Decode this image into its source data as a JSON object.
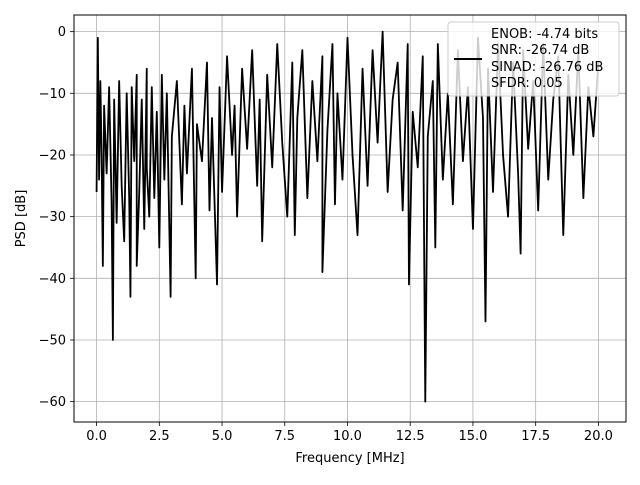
{
  "chart_data": {
    "type": "line",
    "title": "",
    "xlabel": "Frequency [MHz]",
    "ylabel": "PSD [dB]",
    "xlim": [
      -0.9,
      21.1
    ],
    "ylim": [
      -63.3,
      2.7
    ],
    "xticks": [
      0.0,
      2.5,
      5.0,
      7.5,
      10.0,
      12.5,
      15.0,
      17.5,
      20.0
    ],
    "xtick_labels": [
      "0.0",
      "2.5",
      "5.0",
      "7.5",
      "10.0",
      "12.5",
      "15.0",
      "17.5",
      "20.0"
    ],
    "yticks": [
      0,
      -10,
      -20,
      -30,
      -40,
      -50,
      -60
    ],
    "ytick_labels": [
      "0",
      "−10",
      "−20",
      "−30",
      "−40",
      "−50",
      "−60"
    ],
    "grid": true,
    "legend_position": "upper right",
    "legend": {
      "lines": [
        "ENOB: -4.74 bits",
        "SNR: -26.74 dB",
        "SINAD: -26.76 dB",
        "SFDR: 0.05"
      ]
    },
    "series": [
      {
        "color": "#000000",
        "x": [
          0.0,
          0.05,
          0.1,
          0.15,
          0.2,
          0.25,
          0.3,
          0.4,
          0.5,
          0.6,
          0.65,
          0.7,
          0.8,
          0.9,
          1.0,
          1.1,
          1.2,
          1.3,
          1.35,
          1.4,
          1.5,
          1.6,
          1.6,
          1.7,
          1.8,
          1.9,
          2.0,
          2.0,
          2.1,
          2.2,
          2.3,
          2.4,
          2.5,
          2.6,
          2.7,
          2.8,
          2.95,
          3.0,
          3.2,
          3.4,
          3.5,
          3.6,
          3.8,
          3.95,
          4.0,
          4.2,
          4.4,
          4.5,
          4.6,
          4.8,
          4.9,
          5.0,
          5.2,
          5.4,
          5.5,
          5.6,
          5.8,
          6.0,
          6.2,
          6.4,
          6.5,
          6.6,
          6.8,
          7.0,
          7.2,
          7.4,
          7.6,
          7.8,
          7.9,
          8.0,
          8.2,
          8.4,
          8.6,
          8.8,
          9.0,
          9.0,
          9.2,
          9.4,
          9.5,
          9.6,
          9.8,
          10.0,
          10.2,
          10.4,
          10.6,
          10.8,
          11.0,
          11.2,
          11.4,
          11.6,
          11.8,
          12.0,
          12.2,
          12.4,
          12.45,
          12.6,
          12.8,
          13.0,
          13.1,
          13.2,
          13.4,
          13.5,
          13.6,
          13.8,
          14.0,
          14.2,
          14.4,
          14.6,
          14.8,
          15.0,
          15.2,
          15.4,
          15.5,
          15.6,
          15.8,
          16.0,
          16.2,
          16.4,
          16.6,
          16.8,
          16.9,
          17.0,
          17.2,
          17.4,
          17.6,
          17.8,
          18.0,
          18.2,
          18.4,
          18.6,
          18.8,
          19.0,
          19.2,
          19.4,
          19.6,
          19.8,
          20.0
        ],
        "y": [
          -26,
          -1,
          -24,
          -8,
          -20,
          -38,
          -12,
          -23,
          -9,
          -28,
          -50,
          -11,
          -31,
          -8,
          -25,
          -34,
          -10,
          -27,
          -43,
          -9,
          -21,
          -7,
          -38,
          -26,
          -11,
          -32,
          -6,
          -22,
          -30,
          -9,
          -27,
          -13,
          -35,
          -7,
          -24,
          -10,
          -43,
          -17,
          -8,
          -28,
          -12,
          -23,
          -6,
          -40,
          -15,
          -21,
          -5,
          -29,
          -14,
          -41,
          -9,
          -26,
          -4,
          -20,
          -12,
          -30,
          -6,
          -19,
          -3,
          -25,
          -11,
          -34,
          -7,
          -22,
          -2,
          -18,
          -30,
          -5,
          -33,
          -14,
          -3,
          -27,
          -8,
          -21,
          -4,
          -39,
          -16,
          -2,
          -28,
          -10,
          -24,
          -1,
          -20,
          -33,
          -6,
          -25,
          -3,
          -18,
          0,
          -26,
          -11,
          -5,
          -29,
          -2,
          -41,
          -13,
          -22,
          -4,
          -60,
          -17,
          -8,
          -35,
          -2,
          -24,
          -10,
          -28,
          -3,
          -21,
          -9,
          -32,
          -1,
          -14,
          -47,
          -6,
          -26,
          -2,
          -20,
          -30,
          -5,
          -23,
          -36,
          -3,
          -19,
          -8,
          -29,
          -2,
          -24,
          -11,
          -4,
          -33,
          -7,
          -20,
          -3,
          -27,
          -9,
          -17,
          -5
        ]
      }
    ]
  }
}
